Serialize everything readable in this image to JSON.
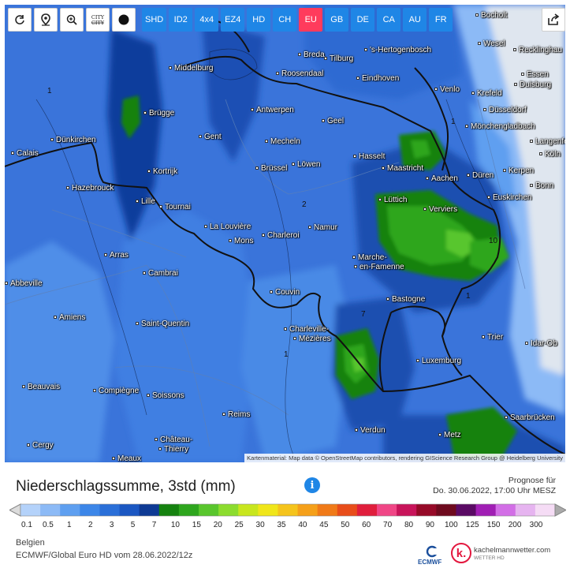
{
  "toolbar": {
    "buttons": [
      {
        "name": "refresh-icon",
        "glyph": "↻"
      },
      {
        "name": "location-pin-icon",
        "glyph": "⌖"
      },
      {
        "name": "zoom-icon",
        "glyph": "⊕"
      },
      {
        "name": "city-toggle-icon",
        "glyph": "CITY"
      },
      {
        "name": "dot-toggle-icon",
        "glyph": "●"
      }
    ],
    "regions": [
      "SHD",
      "ID2",
      "4x4",
      "EZ4",
      "HD",
      "CH",
      "EU",
      "GB",
      "DE",
      "CA",
      "AU",
      "FR"
    ],
    "active_region": "EU"
  },
  "map": {
    "cities": [
      {
        "label": "Breda"
      },
      {
        "label": "Tilburg"
      },
      {
        "label": "'s-Hertogenbosch"
      },
      {
        "label": "Bocholt"
      },
      {
        "label": "Wesel"
      },
      {
        "label": "Recklinghau"
      },
      {
        "label": "Middelburg"
      },
      {
        "label": "Roosendaal"
      },
      {
        "label": "Eindhoven"
      },
      {
        "label": "Essen"
      },
      {
        "label": "Duisburg"
      },
      {
        "label": "Venlo"
      },
      {
        "label": "Krefeld"
      },
      {
        "label": "Düsseldorf"
      },
      {
        "label": "Brügge"
      },
      {
        "label": "Antwerpen"
      },
      {
        "label": "Geel"
      },
      {
        "label": "Mönchengladbach"
      },
      {
        "label": "Langenfel"
      },
      {
        "label": "Gent"
      },
      {
        "label": "Mecheln"
      },
      {
        "label": "Dünkirchen"
      },
      {
        "label": "Calais"
      },
      {
        "label": "Hasselt"
      },
      {
        "label": "Köln"
      },
      {
        "label": "Kortrijk"
      },
      {
        "label": "Brüssel"
      },
      {
        "label": "Löwen"
      },
      {
        "label": "Maastricht"
      },
      {
        "label": "Kerpen"
      },
      {
        "label": "Düren"
      },
      {
        "label": "Hazebrouck"
      },
      {
        "label": "Aachen"
      },
      {
        "label": "Bonn"
      },
      {
        "label": "Lille"
      },
      {
        "label": "Tournai"
      },
      {
        "label": "Lüttich"
      },
      {
        "label": "Euskirchen"
      },
      {
        "label": "Verviers"
      },
      {
        "label": "La Louvière"
      },
      {
        "label": "Namur"
      },
      {
        "label": "Mons"
      },
      {
        "label": "Charleroi"
      },
      {
        "label": "Arras"
      },
      {
        "label": "Marche-"
      },
      {
        "label": "en-Famenne"
      },
      {
        "label": "Cambrai"
      },
      {
        "label": "Abbeville"
      },
      {
        "label": "Couvin"
      },
      {
        "label": "Bastogne"
      },
      {
        "label": "Amiens"
      },
      {
        "label": "Saint-Quentin"
      },
      {
        "label": "Charleville-"
      },
      {
        "label": "Mézières"
      },
      {
        "label": "Trier"
      },
      {
        "label": "Idar-Ob"
      },
      {
        "label": "Luxemburg"
      },
      {
        "label": "Beauvais"
      },
      {
        "label": "Compiègne"
      },
      {
        "label": "Soissons"
      },
      {
        "label": "Reims"
      },
      {
        "label": "Saarbrücken"
      },
      {
        "label": "Verdun"
      },
      {
        "label": "Château-"
      },
      {
        "label": "Thierry"
      },
      {
        "label": "Metz"
      },
      {
        "label": "Cergy"
      },
      {
        "label": "Meaux"
      }
    ],
    "contour_labels": [
      "1",
      "1",
      "2",
      "1",
      "10",
      "7",
      "1"
    ],
    "attribution": "Kartenmaterial: Map data © OpenStreetMap contributors, rendering GIScience Research Group @ Heidelberg University"
  },
  "legend": {
    "title": "Niederschlagssumme, 3std (mm)",
    "forecast_label": "Prognose für",
    "forecast_time": "Do. 30.06.2022, 17:00 Uhr MESZ",
    "ticks": [
      "0.1",
      "0.5",
      "1",
      "2",
      "3",
      "5",
      "7",
      "10",
      "15",
      "20",
      "25",
      "30",
      "35",
      "40",
      "45",
      "50",
      "60",
      "70",
      "80",
      "90",
      "100",
      "125",
      "150",
      "200",
      "300"
    ],
    "colors": [
      "#b4d2fa",
      "#8cbaf6",
      "#5e9ff0",
      "#3c86e8",
      "#2a6fd8",
      "#1b57c2",
      "#0e3a94",
      "#15820f",
      "#2ea61e",
      "#59c62d",
      "#8cdc2e",
      "#c8e61e",
      "#f0e61a",
      "#f5c41c",
      "#f5a01a",
      "#f07a18",
      "#e84d1a",
      "#e01e3c",
      "#f04686",
      "#c8145a",
      "#960a28",
      "#6e0a1e",
      "#5a0a64",
      "#a01eb4",
      "#d26ee6",
      "#e6b4f0",
      "#f5dcf5",
      "#d2d2d2",
      "#aaaaaa"
    ]
  },
  "footer": {
    "country": "Belgien",
    "model_run": "ECMWF/Global Euro HD vom 28.06.2022/12z",
    "ecmwf_label": "ECMWF",
    "brand": "kachelmannwetter.com",
    "brand_sub": "WETTER HD",
    "brand_logo": "k."
  }
}
